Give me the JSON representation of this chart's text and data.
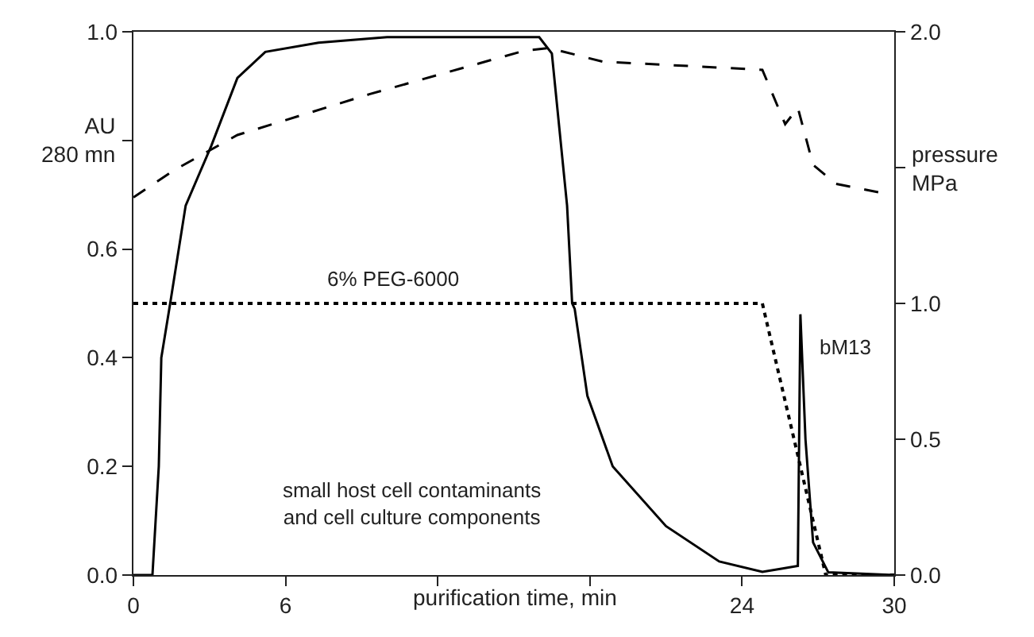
{
  "chart_data": {
    "type": "line",
    "xlabel": "purification time, min",
    "ylabel": "AU\n280 mn",
    "y2label": "pressure\nMPa",
    "xlim": [
      0,
      30
    ],
    "xticks": [
      0,
      6,
      {
        "value": 12,
        "label": null
      },
      {
        "value": 18,
        "label": null
      },
      24,
      30
    ],
    "ylim": [
      0,
      1.0
    ],
    "yticks": [
      {
        "value": 0,
        "label": "0.0"
      },
      0.2,
      0.4,
      0.6,
      {
        "value": 0.8,
        "label": null
      },
      {
        "value": 1,
        "label": "1.0"
      }
    ],
    "y2lim": [
      0,
      2.0
    ],
    "y2ticks": [
      {
        "value": 0,
        "label": "0.0"
      },
      0.5,
      {
        "value": 1,
        "label": "1.0"
      },
      {
        "value": 1.5,
        "label": null
      },
      {
        "value": 2,
        "label": "2.0"
      }
    ],
    "marker": "none",
    "series": [
      {
        "color": "#000000",
        "line_style": "solid",
        "x": [
          0,
          0.75,
          1.0,
          1.1,
          1.45,
          2.06,
          3.07,
          4.1,
          5.2,
          7.3,
          10,
          16.0,
          16.5,
          17.1,
          17.3,
          17.4,
          17.9,
          18.9,
          21,
          23.1,
          24.8,
          25.6,
          26.2,
          26.3,
          26.5,
          26.8,
          27.4,
          30
        ],
        "values": [
          0,
          0,
          0.2,
          0.4,
          0.5,
          0.68,
          0.79,
          0.915,
          0.963,
          0.98,
          0.99,
          0.99,
          0.96,
          0.68,
          0.5,
          0.49,
          0.33,
          0.2,
          0.09,
          0.025,
          0.006,
          0.012,
          0.017,
          0.48,
          0.25,
          0.06,
          0.005,
          0
        ]
      },
      {
        "color": "#000000",
        "line_style": "dashed",
        "axis": "y2",
        "x": [
          0,
          1.6,
          4.1,
          9.3,
          15.4,
          16.4,
          18.5,
          24.8,
          25.7,
          26.2,
          26.8,
          27.7,
          29.9
        ],
        "values": [
          1.39,
          1.49,
          1.62,
          1.77,
          1.93,
          1.94,
          1.89,
          1.86,
          1.66,
          1.72,
          1.51,
          1.44,
          1.4
        ]
      },
      {
        "color": "#000000",
        "line_style": "dotted",
        "axis": "y2",
        "x": [
          0,
          24.8,
          27.3,
          30
        ],
        "values": [
          1.0,
          1.0,
          0,
          0
        ]
      }
    ],
    "annotations": [
      "6% PEG-6000",
      "small host cell contaminants\nand cell culture components",
      "bM13"
    ]
  }
}
